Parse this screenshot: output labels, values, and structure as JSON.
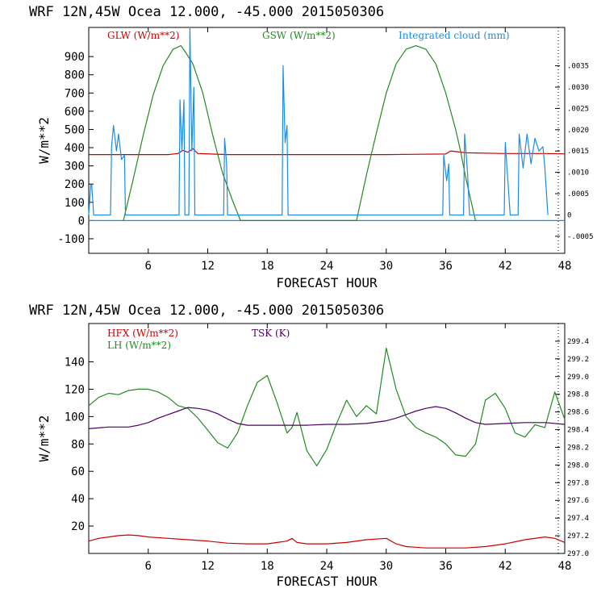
{
  "chart_data": [
    {
      "type": "line",
      "title": "WRF  12N,45W Ocea  12.000, -45.000  2015050306",
      "xlabel": "FORECAST HOUR",
      "ylabel": "W/m**2",
      "xlim": [
        0,
        48
      ],
      "ylim": [
        -180,
        1060
      ],
      "y2lim": [
        -0.0009,
        0.0044
      ],
      "x_ticks": [
        "6",
        "12",
        "18",
        "24",
        "30",
        "36",
        "42",
        "48"
      ],
      "x_tick_values": [
        6,
        12,
        18,
        24,
        30,
        36,
        42,
        48
      ],
      "y_ticks": [
        "-100",
        "0",
        "100",
        "200",
        "300",
        "400",
        "500",
        "600",
        "700",
        "800",
        "900"
      ],
      "y_tick_values": [
        -100,
        0,
        100,
        200,
        300,
        400,
        500,
        600,
        700,
        800,
        900
      ],
      "y2_ticks": [
        "-.0005",
        "0",
        ".0005",
        ".0010",
        ".0015",
        ".0020",
        ".0025",
        ".0030",
        ".0035"
      ],
      "y2_tick_values": [
        -0.0005,
        0,
        0.0005,
        0.001,
        0.0015,
        0.002,
        0.0025,
        0.003,
        0.0035
      ],
      "legend": [
        "GLW (W/m**2)",
        "GSW (W/m**2)",
        "Integrated cloud (mm)"
      ],
      "series": [
        {
          "name": "GLW (W/m**2)",
          "color": "#cc0000",
          "axis": "left",
          "x": [
            0,
            3,
            8,
            9,
            9.5,
            10,
            10.5,
            11,
            14,
            20,
            30,
            36,
            36.5,
            38,
            42,
            46,
            48
          ],
          "y": [
            362,
            362,
            362,
            368,
            385,
            375,
            395,
            368,
            362,
            362,
            362,
            365,
            382,
            372,
            368,
            368,
            366
          ]
        },
        {
          "name": "GSW (W/m**2)",
          "color": "#228b22",
          "axis": "left",
          "x": [
            3.5,
            4.5,
            5.5,
            6.5,
            7.5,
            8.5,
            9.3,
            9.8,
            10.5,
            11.5,
            12.5,
            13.5,
            14.5,
            15.3,
            27.0,
            28.0,
            29.0,
            30.0,
            31.0,
            32.0,
            33.0,
            34.0,
            35.0,
            36.0,
            37.0,
            37.5,
            38.0,
            38.5,
            39.0
          ],
          "y": [
            0,
            230,
            470,
            690,
            850,
            940,
            960,
            920,
            860,
            700,
            470,
            260,
            110,
            0,
            0,
            250,
            480,
            700,
            860,
            940,
            960,
            940,
            860,
            700,
            500,
            380,
            240,
            120,
            0
          ]
        },
        {
          "name": "Integrated cloud (mm)",
          "color": "#1e8ce6",
          "axis": "right",
          "x": [
            0,
            0.2,
            0.3,
            0.5,
            2.2,
            2.3,
            2.5,
            2.8,
            3.0,
            3.3,
            3.6,
            3.7,
            9.1,
            9.2,
            9.4,
            9.6,
            9.7,
            10.1,
            10.2,
            10.4,
            10.6,
            10.7,
            13.6,
            13.7,
            13.9,
            14.0,
            19.5,
            19.6,
            19.8,
            20.0,
            20.1,
            35.7,
            35.8,
            36.1,
            36.3,
            36.4,
            37.8,
            37.9,
            38.2,
            38.4,
            41.9,
            42.0,
            42.3,
            42.5,
            43.3,
            43.4,
            43.8,
            44.2,
            44.6,
            45.0,
            45.4,
            45.8,
            46.0,
            46.3
          ],
          "y": [
            0,
            0.0007,
            0.0007,
            0,
            0,
            0.0016,
            0.0021,
            0.0015,
            0.0019,
            0.0013,
            0.0014,
            0,
            0,
            0.0027,
            0.0015,
            0.0027,
            0,
            0,
            0.0044,
            0.0015,
            0.003,
            0,
            0,
            0.0018,
            0.0012,
            0,
            0,
            0.0035,
            0.0017,
            0.0021,
            0,
            0,
            0.0014,
            0.0008,
            0.0012,
            0,
            0,
            0.0019,
            0.001,
            0,
            0,
            0.0017,
            0.0007,
            0,
            0,
            0.0019,
            0.0011,
            0.0019,
            0.0012,
            0.0018,
            0.0015,
            0.0016,
            0.0011,
            0
          ]
        }
      ]
    },
    {
      "type": "line",
      "title": "WRF  12N,45W Ocea  12.000, -45.000  2015050306",
      "xlabel": "FORECAST HOUR",
      "ylabel": "W/m**2",
      "xlim": [
        0,
        48
      ],
      "ylim": [
        0,
        168
      ],
      "y2lim": [
        297.0,
        299.6
      ],
      "x_ticks": [
        "6",
        "12",
        "18",
        "24",
        "30",
        "36",
        "42",
        "48"
      ],
      "x_tick_values": [
        6,
        12,
        18,
        24,
        30,
        36,
        42,
        48
      ],
      "y_ticks": [
        "20",
        "40",
        "60",
        "80",
        "100",
        "120",
        "140"
      ],
      "y_tick_values": [
        20,
        40,
        60,
        80,
        100,
        120,
        140
      ],
      "y2_ticks": [
        "297.0",
        "297.2",
        "297.4",
        "297.6",
        "297.8",
        "298.0",
        "298.2",
        "298.4",
        "298.6",
        "298.8",
        "299.0",
        "299.2",
        "299.4"
      ],
      "y2_tick_values": [
        297.0,
        297.2,
        297.4,
        297.6,
        297.8,
        298.0,
        298.2,
        298.4,
        298.6,
        298.8,
        299.0,
        299.2,
        299.4
      ],
      "legend": [
        "HFX (W/m**2)",
        "LH  (W/m**2)",
        "TSK (K)"
      ],
      "series": [
        {
          "name": "HFX (W/m**2)",
          "color": "#cc0000",
          "axis": "left",
          "x": [
            0,
            1,
            2,
            3,
            4,
            5,
            6,
            8,
            10,
            12,
            14,
            16,
            18,
            19,
            20,
            20.5,
            21,
            22,
            24,
            26,
            28,
            30,
            31,
            32,
            34,
            36,
            38,
            40,
            42,
            44,
            46,
            47,
            48
          ],
          "y": [
            9,
            11,
            12,
            13,
            13.5,
            13,
            12,
            11,
            10,
            9,
            7.5,
            7,
            7,
            8,
            9,
            11,
            8,
            7,
            7,
            8,
            10,
            11,
            7,
            5,
            4,
            4,
            4,
            5,
            7,
            10,
            12,
            11,
            8
          ]
        },
        {
          "name": "LH  (W/m**2)",
          "color": "#228b22",
          "axis": "left",
          "x": [
            0,
            1,
            2,
            3,
            4,
            5,
            6,
            7,
            8,
            9,
            10,
            11,
            12,
            13,
            14,
            15,
            16,
            17,
            18,
            19,
            20,
            20.5,
            21,
            22,
            23,
            24,
            25,
            26,
            27,
            28,
            29,
            30,
            31,
            32,
            33,
            34,
            35,
            36,
            37,
            38,
            39,
            40,
            41,
            42,
            43,
            44,
            45,
            46,
            47,
            48
          ],
          "y": [
            108,
            114,
            117,
            116,
            119,
            120,
            120,
            118,
            114,
            108,
            106,
            99,
            90,
            81,
            77,
            88,
            108,
            125,
            130,
            110,
            88,
            92,
            103,
            75,
            64,
            76,
            95,
            112,
            100,
            108,
            102,
            150,
            120,
            100,
            92,
            88,
            85,
            80,
            72,
            71,
            80,
            112,
            117,
            106,
            88,
            85,
            94,
            92,
            118,
            98
          ]
        },
        {
          "name": "TSK (K)",
          "color": "#4b0062",
          "axis": "right",
          "x": [
            0,
            2,
            4,
            5,
            6,
            7,
            8,
            9,
            10,
            11,
            12,
            13,
            14,
            15,
            16,
            18,
            20,
            22,
            24,
            26,
            28,
            30,
            31,
            32,
            33,
            34,
            35,
            36,
            37,
            38,
            39,
            40,
            42,
            44,
            46,
            48
          ],
          "y": [
            298.41,
            298.43,
            298.43,
            298.45,
            298.48,
            298.53,
            298.57,
            298.61,
            298.65,
            298.64,
            298.62,
            298.58,
            298.52,
            298.47,
            298.45,
            298.45,
            298.45,
            298.45,
            298.46,
            298.46,
            298.47,
            298.5,
            298.53,
            298.57,
            298.61,
            298.64,
            298.66,
            298.64,
            298.59,
            298.53,
            298.48,
            298.46,
            298.47,
            298.48,
            298.48,
            298.46
          ]
        }
      ]
    }
  ]
}
